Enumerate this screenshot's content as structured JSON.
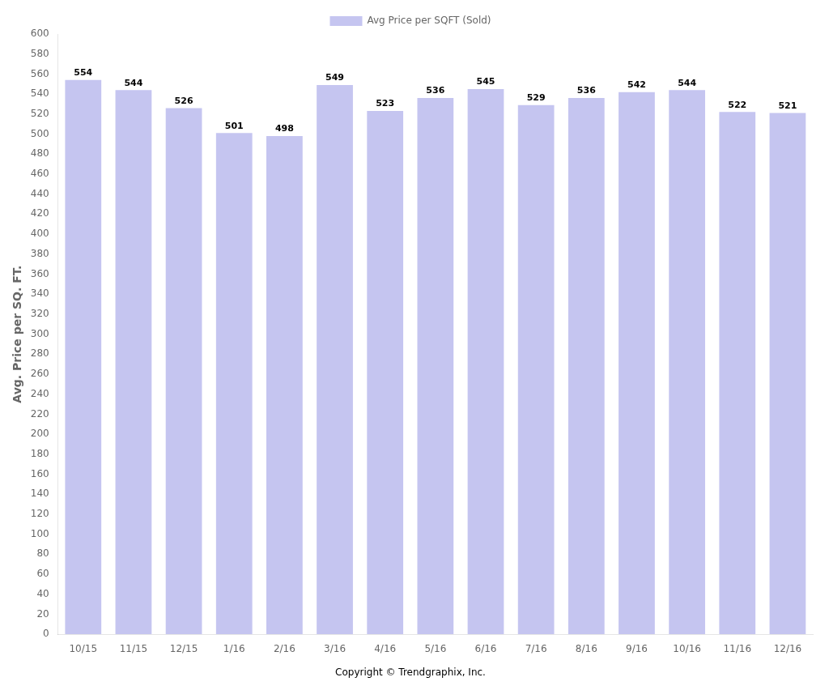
{
  "chart_data": {
    "type": "bar",
    "categories": [
      "10/15",
      "11/15",
      "12/15",
      "1/16",
      "2/16",
      "3/16",
      "4/16",
      "5/16",
      "6/16",
      "7/16",
      "8/16",
      "9/16",
      "10/16",
      "11/16",
      "12/16"
    ],
    "series": [
      {
        "name": "Avg Price per SQFT (Sold)",
        "color": "#c5c5f0",
        "values": [
          554,
          544,
          526,
          501,
          498,
          549,
          523,
          536,
          545,
          529,
          536,
          542,
          544,
          522,
          521
        ]
      }
    ],
    "ylabel": "Avg. Price per SQ. FT.",
    "ylim": [
      0,
      600
    ],
    "yticks": [
      0,
      20,
      40,
      60,
      80,
      100,
      120,
      140,
      160,
      180,
      200,
      220,
      240,
      260,
      280,
      300,
      320,
      340,
      360,
      380,
      400,
      420,
      440,
      460,
      480,
      500,
      520,
      540,
      560,
      580,
      600
    ],
    "grid": false,
    "legend": "top",
    "data_labels": true,
    "annotations": [
      "Copyright © Trendgraphix, Inc."
    ]
  }
}
